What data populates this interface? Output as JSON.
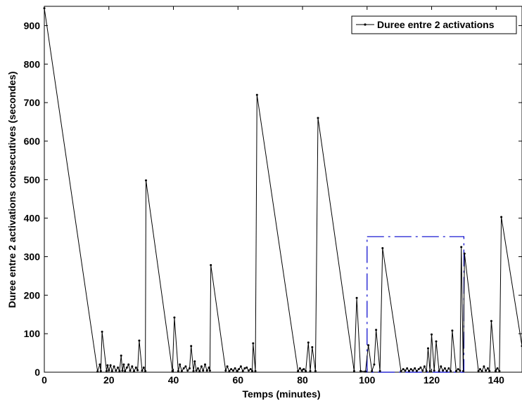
{
  "chart_data": {
    "type": "line",
    "title": "",
    "xlabel": "Temps (minutes)",
    "ylabel": "Duree entre 2 activations consecutives (secondes)",
    "xlim": [
      0,
      148
    ],
    "ylim": [
      0,
      950
    ],
    "xticks": [
      0,
      20,
      40,
      60,
      80,
      100,
      120,
      140
    ],
    "yticks": [
      0,
      100,
      200,
      300,
      400,
      500,
      600,
      700,
      800,
      900
    ],
    "grid": false,
    "legend_position": "top-right",
    "series": [
      {
        "name": "Duree entre 2 activations",
        "color": "#000000",
        "marker": "dot",
        "points": [
          [
            0,
            945
          ],
          [
            16.5,
            2
          ],
          [
            17.2,
            20
          ],
          [
            17.5,
            3
          ],
          [
            17.9,
            105
          ],
          [
            19.3,
            3
          ],
          [
            19.6,
            18
          ],
          [
            20,
            5
          ],
          [
            20.5,
            18
          ],
          [
            21,
            3
          ],
          [
            21.6,
            15
          ],
          [
            22.2,
            4
          ],
          [
            22.8,
            12
          ],
          [
            23.3,
            3
          ],
          [
            23.8,
            43
          ],
          [
            24.2,
            4
          ],
          [
            24.6,
            20
          ],
          [
            25,
            3
          ],
          [
            25.6,
            12
          ],
          [
            26.1,
            20
          ],
          [
            26.6,
            4
          ],
          [
            27.2,
            15
          ],
          [
            27.8,
            3
          ],
          [
            28.4,
            12
          ],
          [
            28.9,
            5
          ],
          [
            29.4,
            82
          ],
          [
            30.3,
            4
          ],
          [
            30.8,
            12
          ],
          [
            31.3,
            3
          ],
          [
            31.5,
            498
          ],
          [
            39.7,
            3
          ],
          [
            40.3,
            142
          ],
          [
            41.5,
            3
          ],
          [
            42,
            20
          ],
          [
            42.6,
            3
          ],
          [
            43.2,
            10
          ],
          [
            43.8,
            15
          ],
          [
            44.4,
            4
          ],
          [
            45,
            10
          ],
          [
            45.5,
            68
          ],
          [
            46.2,
            3
          ],
          [
            46.6,
            28
          ],
          [
            47.1,
            4
          ],
          [
            47.6,
            10
          ],
          [
            48.1,
            3
          ],
          [
            48.7,
            15
          ],
          [
            49.2,
            4
          ],
          [
            49.8,
            20
          ],
          [
            50.4,
            4
          ],
          [
            51,
            12
          ],
          [
            51.3,
            4
          ],
          [
            51.6,
            278
          ],
          [
            56.2,
            4
          ],
          [
            56.7,
            15
          ],
          [
            57.3,
            3
          ],
          [
            57.9,
            8
          ],
          [
            58.5,
            4
          ],
          [
            59.1,
            10
          ],
          [
            59.7,
            3
          ],
          [
            60.3,
            8
          ],
          [
            60.9,
            15
          ],
          [
            61.5,
            3
          ],
          [
            62.1,
            10
          ],
          [
            62.7,
            12
          ],
          [
            63.3,
            4
          ],
          [
            63.9,
            8
          ],
          [
            64.4,
            3
          ],
          [
            64.7,
            75
          ],
          [
            65.4,
            3
          ],
          [
            65.9,
            720
          ],
          [
            78.6,
            3
          ],
          [
            79.2,
            10
          ],
          [
            79.8,
            4
          ],
          [
            80.4,
            8
          ],
          [
            81,
            3
          ],
          [
            81.8,
            77
          ],
          [
            82.4,
            3
          ],
          [
            83,
            65
          ],
          [
            84,
            3
          ],
          [
            84.8,
            660
          ],
          [
            96,
            3
          ],
          [
            96.8,
            193
          ],
          [
            98,
            3
          ],
          [
            99.5,
            2
          ],
          [
            100.4,
            70
          ],
          [
            101.5,
            3
          ],
          [
            102.2,
            20
          ],
          [
            102.8,
            110
          ],
          [
            104,
            3
          ],
          [
            104.8,
            322
          ],
          [
            110.5,
            3
          ],
          [
            111.2,
            8
          ],
          [
            111.8,
            4
          ],
          [
            112.4,
            10
          ],
          [
            113,
            3
          ],
          [
            113.6,
            8
          ],
          [
            114.2,
            4
          ],
          [
            114.8,
            10
          ],
          [
            115.4,
            3
          ],
          [
            116,
            8
          ],
          [
            116.6,
            12
          ],
          [
            117.2,
            4
          ],
          [
            117.8,
            15
          ],
          [
            118.4,
            3
          ],
          [
            118.9,
            62
          ],
          [
            119.5,
            3
          ],
          [
            120,
            98
          ],
          [
            120.8,
            4
          ],
          [
            121.4,
            80
          ],
          [
            122.3,
            3
          ],
          [
            122.9,
            15
          ],
          [
            123.5,
            4
          ],
          [
            124.1,
            10
          ],
          [
            124.7,
            3
          ],
          [
            125.3,
            10
          ],
          [
            125.9,
            3
          ],
          [
            126.4,
            108
          ],
          [
            127.6,
            3
          ],
          [
            128.2,
            8
          ],
          [
            128.8,
            4
          ],
          [
            129.2,
            325
          ],
          [
            129.8,
            3
          ],
          [
            130.2,
            308
          ],
          [
            134.5,
            3
          ],
          [
            135,
            8
          ],
          [
            135.6,
            3
          ],
          [
            136.2,
            15
          ],
          [
            136.8,
            4
          ],
          [
            137.4,
            10
          ],
          [
            137.9,
            3
          ],
          [
            138.5,
            133
          ],
          [
            139.8,
            3
          ],
          [
            140.4,
            10
          ],
          [
            141,
            3
          ],
          [
            141.6,
            403
          ],
          [
            148,
            68
          ]
        ]
      }
    ],
    "annotations": [
      {
        "type": "dashed-rectangle",
        "color": "#0000cc",
        "x": [
          100,
          130
        ],
        "y": [
          0,
          352
        ]
      }
    ]
  }
}
